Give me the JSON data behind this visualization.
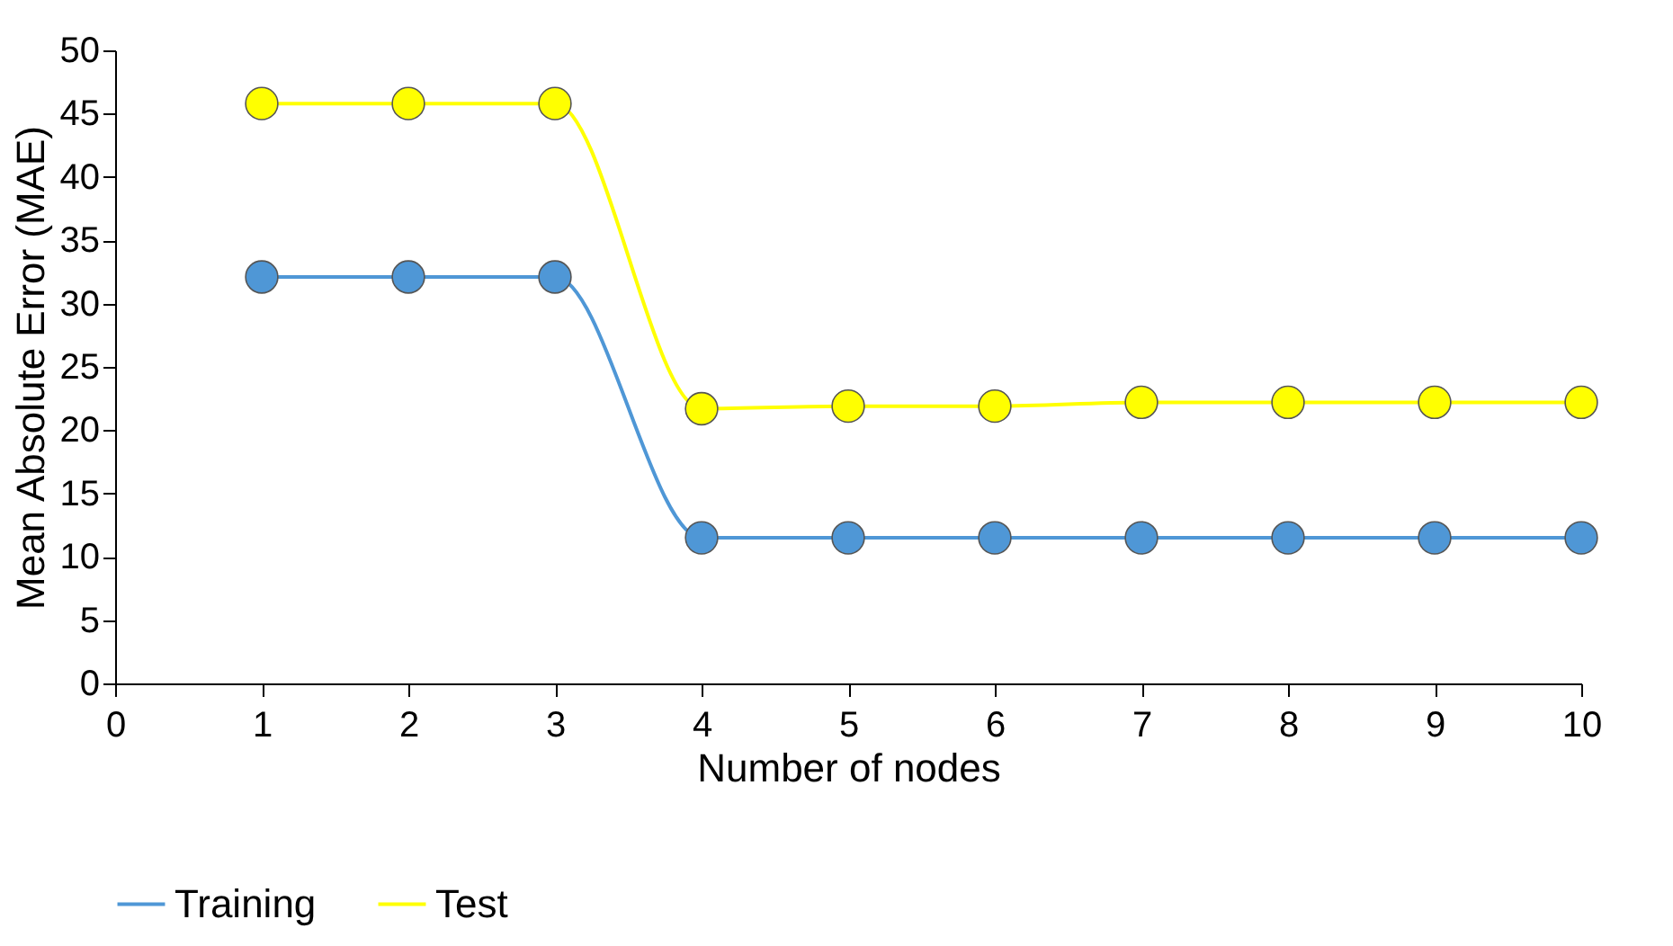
{
  "chart_data": {
    "type": "line",
    "xlabel": "Number of nodes",
    "ylabel": "Mean Absolute Error (MAE)",
    "x": [
      1,
      2,
      3,
      4,
      5,
      6,
      7,
      8,
      9,
      10
    ],
    "series": [
      {
        "name": "Training",
        "color": "#4f97d6",
        "values": [
          32.1,
          32.1,
          32.1,
          11.5,
          11.5,
          11.5,
          11.5,
          11.5,
          11.5,
          11.5
        ]
      },
      {
        "name": "Test",
        "color": "#ffff00",
        "values": [
          45.8,
          45.8,
          45.8,
          21.7,
          21.9,
          21.9,
          22.2,
          22.2,
          22.2,
          22.2
        ]
      }
    ],
    "xlim": [
      0,
      10
    ],
    "xticks": [
      0,
      1,
      2,
      3,
      4,
      5,
      6,
      7,
      8,
      9,
      10
    ],
    "ylim": [
      0,
      50
    ],
    "yticks": [
      0,
      5,
      10,
      15,
      20,
      25,
      30,
      35,
      40,
      45,
      50
    ],
    "grid": false,
    "legend": "bottom",
    "marker": "circle",
    "line_style": "solid"
  }
}
